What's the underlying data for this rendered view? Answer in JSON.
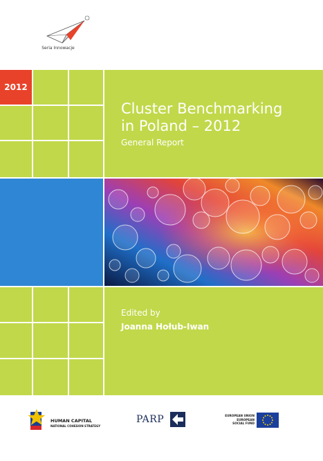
{
  "header": {
    "series_label": "Seria Innowacje",
    "logo_icon": "paper-plane-logo-icon"
  },
  "cover": {
    "year_badge": "2012",
    "title_line1": "Cluster Benchmarking",
    "title_line2": "in Poland – 2012",
    "subtitle": "General Report",
    "edited_by": "Edited by",
    "editor": "Joanna Hołub-Iwan",
    "accent_green": "#c1d84a",
    "accent_red": "#e8432a",
    "accent_blue": "#2e86d4",
    "image_icon": "bokeh-circles-image"
  },
  "footer": {
    "human_capital_title": "HUMAN CAPITAL",
    "human_capital_sub": "NATIONAL COHESION STRATEGY",
    "parp_label": "PARP",
    "eu_line1": "EUROPEAN UNION",
    "eu_line2": "EUROPEAN",
    "eu_line3": "SOCIAL FUND"
  }
}
